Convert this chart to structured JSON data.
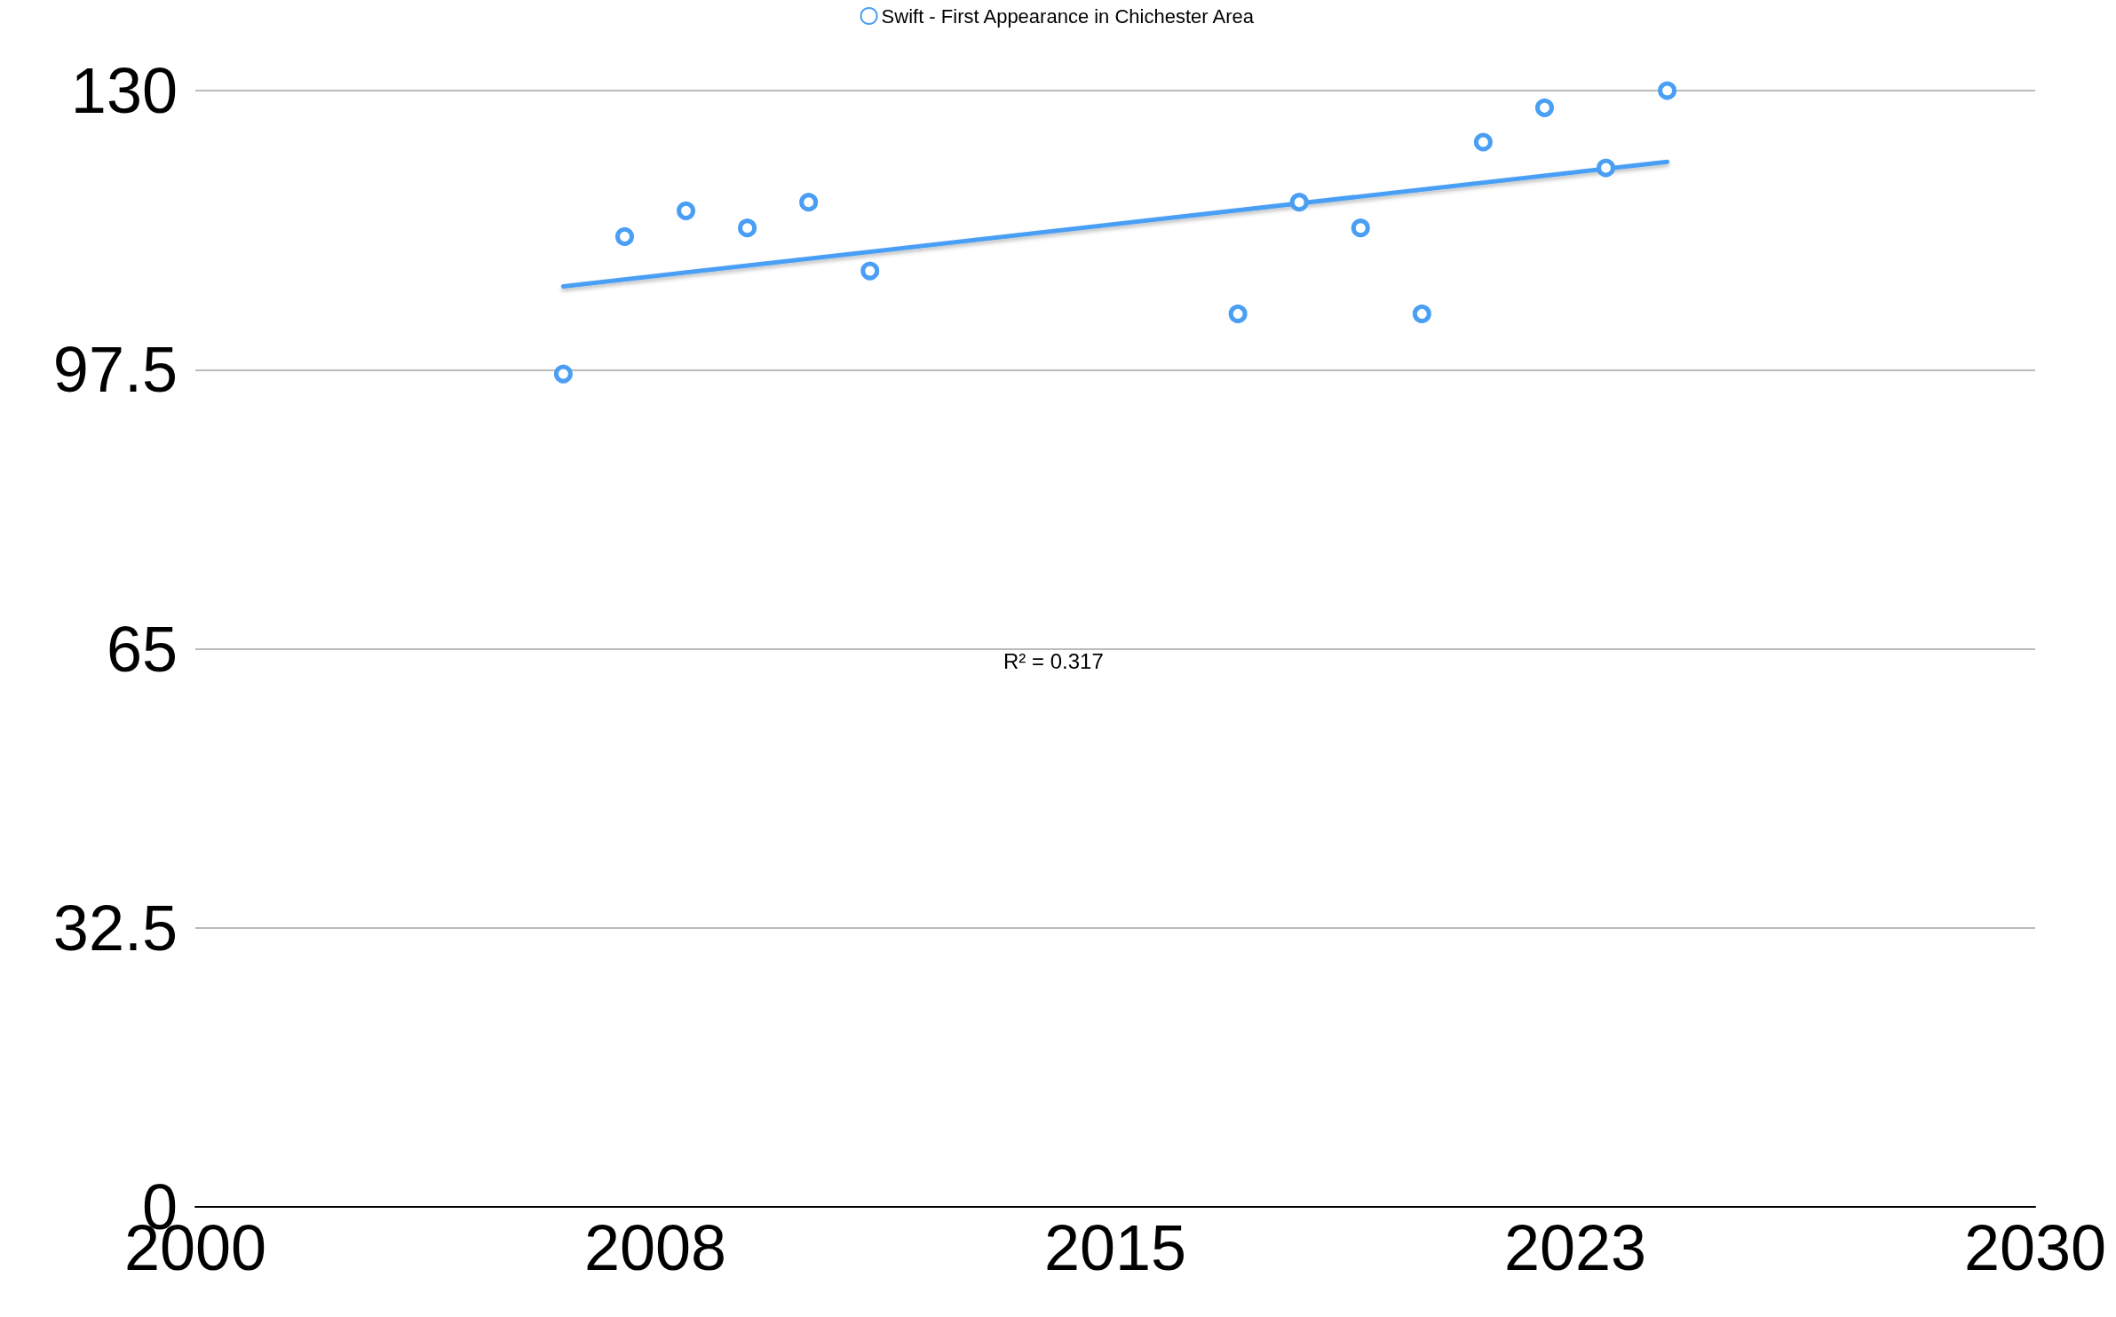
{
  "chart_data": {
    "type": "scatter",
    "x": [
      2006,
      2007,
      2008,
      2009,
      2010,
      2011,
      2017,
      2018,
      2019,
      2020,
      2021,
      2022,
      2023,
      2024
    ],
    "series": [
      {
        "name": "Swift - First Appearance in Chichester Area",
        "color": "#4a9ff5",
        "values": [
          97,
          113,
          116,
          114,
          117,
          109,
          104,
          117,
          114,
          104,
          124,
          128,
          121,
          130
        ]
      },
      {
        "type": "line",
        "color": "#4a9ff5",
        "x": [
          2006,
          2024
        ],
        "values": [
          107.2,
          121.7
        ],
        "marker": "none"
      }
    ],
    "xlim": [
      2000,
      2030
    ],
    "xticks": [
      2000,
      {
        "value": 2007.5,
        "label": "2008"
      },
      2015,
      {
        "value": 2022.5,
        "label": "2023"
      },
      2030
    ],
    "ylim": [
      0,
      130
    ],
    "yticks": [
      0,
      32.5,
      65,
      97.5,
      130
    ],
    "grid": "y",
    "legend": "top",
    "marker": "circle",
    "annotations": [
      "R² = 0.317"
    ]
  }
}
